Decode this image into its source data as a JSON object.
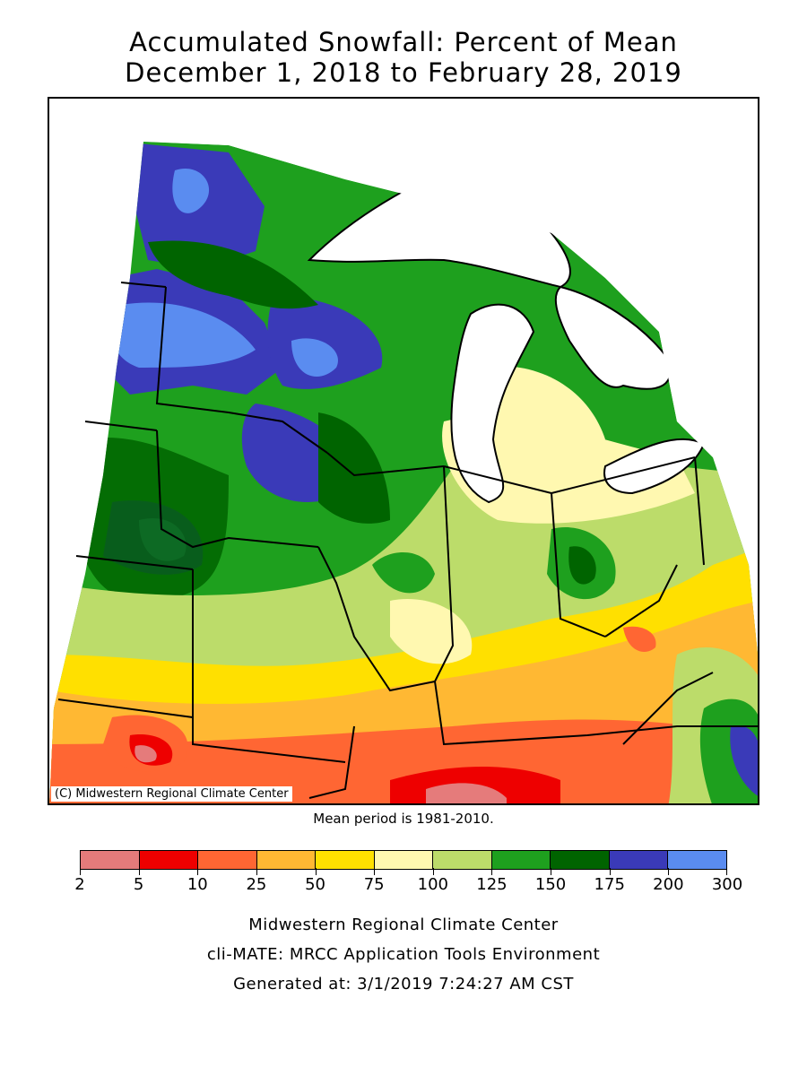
{
  "title_line1": "Accumulated Snowfall: Percent of Mean",
  "title_line2": "December 1, 2018 to February 28, 2019",
  "credit": "(C) Midwestern Regional Climate Center",
  "mean_period": "Mean period is 1981-2010.",
  "legend": {
    "colors": [
      "#e57b7b",
      "#ee0000",
      "#ff6633",
      "#ffb833",
      "#ffe000",
      "#fff8b0",
      "#bcdc6a",
      "#1ea01e",
      "#006400",
      "#3a3ab8",
      "#5a8cf0"
    ],
    "labels": [
      "2",
      "5",
      "10",
      "25",
      "50",
      "75",
      "100",
      "125",
      "150",
      "175",
      "200",
      "300"
    ]
  },
  "footer": {
    "line1": "Midwestern Regional Climate Center",
    "line2": "cli-MATE: MRCC Application Tools Environment",
    "line3": "Generated at: 3/1/2019 7:24:27 AM CST"
  }
}
